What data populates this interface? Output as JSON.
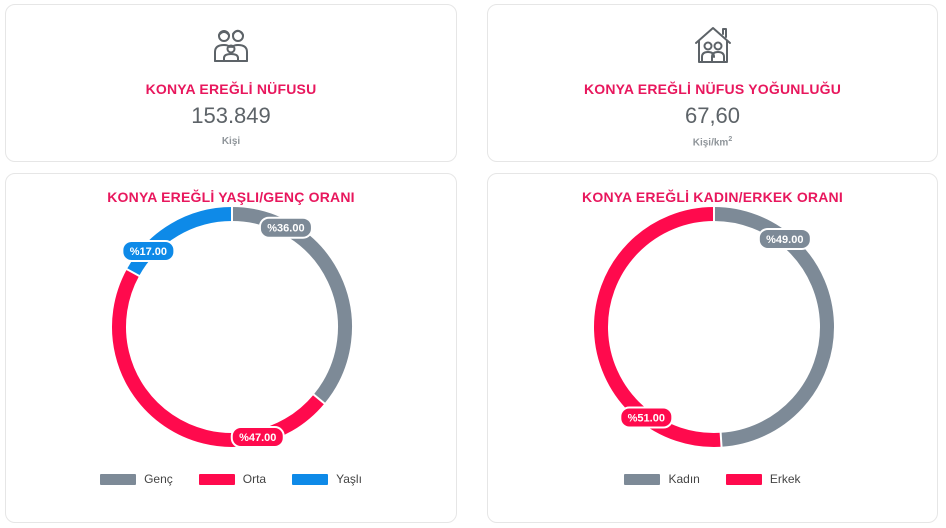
{
  "population": {
    "title": "KONYA EREĞLİ NÜFUSU",
    "value": "153.849",
    "unit": "Kişi",
    "icon": "family-icon"
  },
  "density": {
    "title": "KONYA EREĞLİ NÜFUS YOĞUNLUĞU",
    "value": "67,60",
    "unit_base": "Kişi/km",
    "unit_sup": "2",
    "icon": "house-family-icon"
  },
  "chart_data": [
    {
      "type": "pie",
      "title": "KONYA EREĞLİ YAŞLI/GENÇ ORANI",
      "categories": [
        "Genç",
        "Orta",
        "Yaşlı"
      ],
      "values": [
        36.0,
        47.0,
        17.0
      ],
      "data_labels": [
        "%36.00",
        "%47.00",
        "%17.00"
      ],
      "colors": [
        "#7d8a97",
        "#ff0a4d",
        "#0e8ae8"
      ],
      "legend_position": "bottom",
      "donut": true
    },
    {
      "type": "pie",
      "title": "KONYA EREĞLİ KADIN/ERKEK ORANI",
      "categories": [
        "Kadın",
        "Erkek"
      ],
      "values": [
        49.0,
        51.0
      ],
      "data_labels": [
        "%49.00",
        "%51.00"
      ],
      "colors": [
        "#7d8a97",
        "#ff0a4d"
      ],
      "legend_position": "bottom",
      "donut": true
    }
  ]
}
